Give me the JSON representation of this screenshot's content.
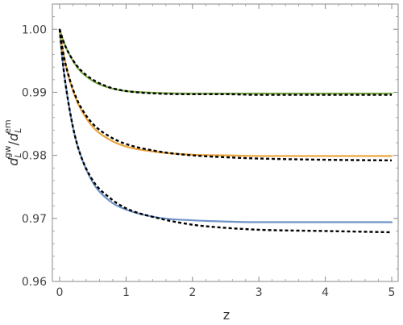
{
  "chart_data": {
    "type": "line",
    "xlabel": "z",
    "ylabel": {
      "base": "d",
      "sub": "L",
      "sup_num": "gw",
      "sep": "/",
      "sup_den": "em"
    },
    "xlim": [
      0,
      5
    ],
    "ylim": [
      0.96,
      1.004
    ],
    "x_ticks": [
      0,
      1,
      2,
      3,
      4,
      5
    ],
    "x_tick_labels": [
      "0",
      "1",
      "2",
      "3",
      "4",
      "5"
    ],
    "y_ticks": [
      0.96,
      0.97,
      0.98,
      0.99,
      1.0
    ],
    "y_tick_labels": [
      "0.96",
      "0.97",
      "0.98",
      "0.99",
      "1.00"
    ],
    "grid": false,
    "series": [
      {
        "color": "#6f93c8",
        "style": "solid",
        "x": [
          0,
          0.05,
          0.1,
          0.2,
          0.3,
          0.5,
          0.75,
          1.0,
          1.5,
          2.0,
          2.5,
          3.0,
          4.0,
          5.0
        ],
        "y": [
          1.0,
          0.9945,
          0.9905,
          0.9845,
          0.9805,
          0.9757,
          0.9728,
          0.9714,
          0.9701,
          0.9697,
          0.9695,
          0.9694,
          0.9694,
          0.9694
        ]
      },
      {
        "color": "#000000",
        "style": "dotted",
        "x": [
          0,
          0.05,
          0.1,
          0.2,
          0.3,
          0.5,
          0.75,
          1.0,
          1.5,
          2.0,
          2.5,
          3.0,
          4.0,
          5.0
        ],
        "y": [
          1.0,
          0.9945,
          0.9905,
          0.9845,
          0.9805,
          0.976,
          0.9733,
          0.9716,
          0.97,
          0.969,
          0.9685,
          0.9682,
          0.968,
          0.9678
        ]
      },
      {
        "color": "#e8a33a",
        "style": "solid",
        "x": [
          0,
          0.05,
          0.1,
          0.2,
          0.3,
          0.5,
          0.75,
          1.0,
          1.5,
          2.0,
          2.5,
          3.0,
          4.0,
          5.0
        ],
        "y": [
          1.0,
          0.9965,
          0.994,
          0.9903,
          0.9877,
          0.9845,
          0.9825,
          0.9814,
          0.9805,
          0.9801,
          0.98,
          0.9799,
          0.9799,
          0.9799
        ]
      },
      {
        "color": "#000000",
        "style": "dotted",
        "x": [
          0,
          0.05,
          0.1,
          0.2,
          0.3,
          0.5,
          0.75,
          1.0,
          1.5,
          2.0,
          2.5,
          3.0,
          4.0,
          5.0
        ],
        "y": [
          1.0,
          0.9965,
          0.994,
          0.9905,
          0.988,
          0.985,
          0.983,
          0.9818,
          0.9806,
          0.98,
          0.9797,
          0.9795,
          0.9793,
          0.9792
        ]
      },
      {
        "color": "#7fb14a",
        "style": "solid",
        "x": [
          0,
          0.05,
          0.1,
          0.2,
          0.3,
          0.5,
          0.75,
          1.0,
          1.5,
          2.0,
          2.5,
          3.0,
          4.0,
          5.0
        ],
        "y": [
          1.0,
          0.9983,
          0.997,
          0.995,
          0.9935,
          0.9918,
          0.9907,
          0.9902,
          0.9899,
          0.9898,
          0.9898,
          0.9898,
          0.9898,
          0.9898
        ]
      },
      {
        "color": "#000000",
        "style": "dotted",
        "x": [
          0,
          0.05,
          0.1,
          0.2,
          0.3,
          0.5,
          0.75,
          1.0,
          1.5,
          2.0,
          2.5,
          3.0,
          4.0,
          5.0
        ],
        "y": [
          1.0,
          0.9983,
          0.997,
          0.9951,
          0.9937,
          0.992,
          0.9908,
          0.9902,
          0.9898,
          0.9897,
          0.9897,
          0.9896,
          0.9896,
          0.9896
        ]
      }
    ]
  }
}
